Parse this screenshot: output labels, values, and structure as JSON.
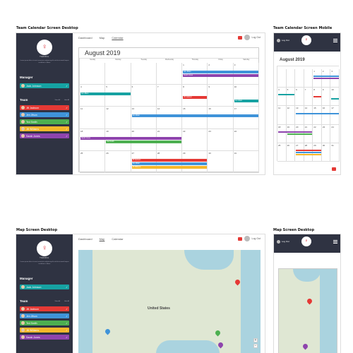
{
  "captions": {
    "calendar_desktop": "Team Calendar Screen Desktop",
    "calendar_mobile": "Team Calendar Screen Mobile",
    "map_desktop": "Map Screen Desktop",
    "map_mobile": "Map Screen Desktop"
  },
  "nav": {
    "dashboard": "Dashboard",
    "map": "Map",
    "calendar": "Calendar",
    "logout": "Log Out"
  },
  "brand": "TERRA",
  "sidebar_desc": "Lorem ipsum dolor sit amet consectetur adipiscing elit sed do eiusmod tempor incididunt ut labore",
  "manager": {
    "heading": "Manager",
    "name": "Jack Johnson"
  },
  "team": {
    "heading": "Team",
    "col1": "Show All",
    "col2": "Hide All",
    "members": [
      {
        "name": "Jill Jackson",
        "color": "#e53935"
      },
      {
        "name": "Jen Jifson",
        "color": "#3f93d9"
      },
      {
        "name": "Ted Smith",
        "color": "#4caf50"
      },
      {
        "name": "Jill Williams",
        "color": "#f5b72a"
      },
      {
        "name": "Sarah Jones",
        "color": "#8e44ad"
      }
    ]
  },
  "calendar": {
    "month": "August 2019",
    "days": [
      "Sunday",
      "Monday",
      "Tuesday",
      "Wednesday",
      "Thursday",
      "Friday",
      "Saturday"
    ],
    "weeks": [
      [
        "",
        "",
        "",
        "",
        "1",
        "2",
        "3"
      ],
      [
        "4",
        "5",
        "6",
        "7",
        "8",
        "9",
        "10"
      ],
      [
        "11",
        "12",
        "13",
        "14",
        "15",
        "16",
        "17"
      ],
      [
        "18",
        "19",
        "20",
        "21",
        "22",
        "23",
        "24"
      ],
      [
        "25",
        "26",
        "27",
        "28",
        "29",
        "30",
        "31"
      ]
    ],
    "events": [
      {
        "label": "Jen Jifson",
        "color": "#3f93d9",
        "week": 0,
        "start": 4,
        "end": 6
      },
      {
        "label": "Sarah Jones",
        "color": "#8e44ad",
        "week": 0,
        "start": 4,
        "end": 6
      },
      {
        "label": "Jen Jifson",
        "color": "#16a2a2",
        "week": 1,
        "start": 0,
        "end": 1
      },
      {
        "label": "Jill Jackson",
        "color": "#e53935",
        "week": 1,
        "start": 4,
        "end": 4
      },
      {
        "label": "Jen Jifson",
        "color": "#16a2a2",
        "week": 1,
        "start": 6,
        "end": 6
      },
      {
        "label": "Jen Jifson",
        "color": "#3f93d9",
        "week": 2,
        "start": 2,
        "end": 6
      },
      {
        "label": "Sarah Jones",
        "color": "#8e44ad",
        "week": 3,
        "start": 0,
        "end": 3
      },
      {
        "label": "Ted Smith",
        "color": "#4caf50",
        "week": 3,
        "start": 1,
        "end": 3
      },
      {
        "label": "Jill Jackson",
        "color": "#e53935",
        "week": 4,
        "start": 2,
        "end": 4
      },
      {
        "label": "Jen Jifson",
        "color": "#3f93d9",
        "week": 4,
        "start": 2,
        "end": 4
      },
      {
        "label": "Jill Williams",
        "color": "#f5b72a",
        "week": 4,
        "start": 2,
        "end": 4
      }
    ]
  },
  "map": {
    "country_label": "United States",
    "zoom_in": "+",
    "zoom_out": "−"
  },
  "colors": {
    "sidebar": "#2f3342",
    "manager": "#16a2a2",
    "accent": "#d9232d"
  }
}
